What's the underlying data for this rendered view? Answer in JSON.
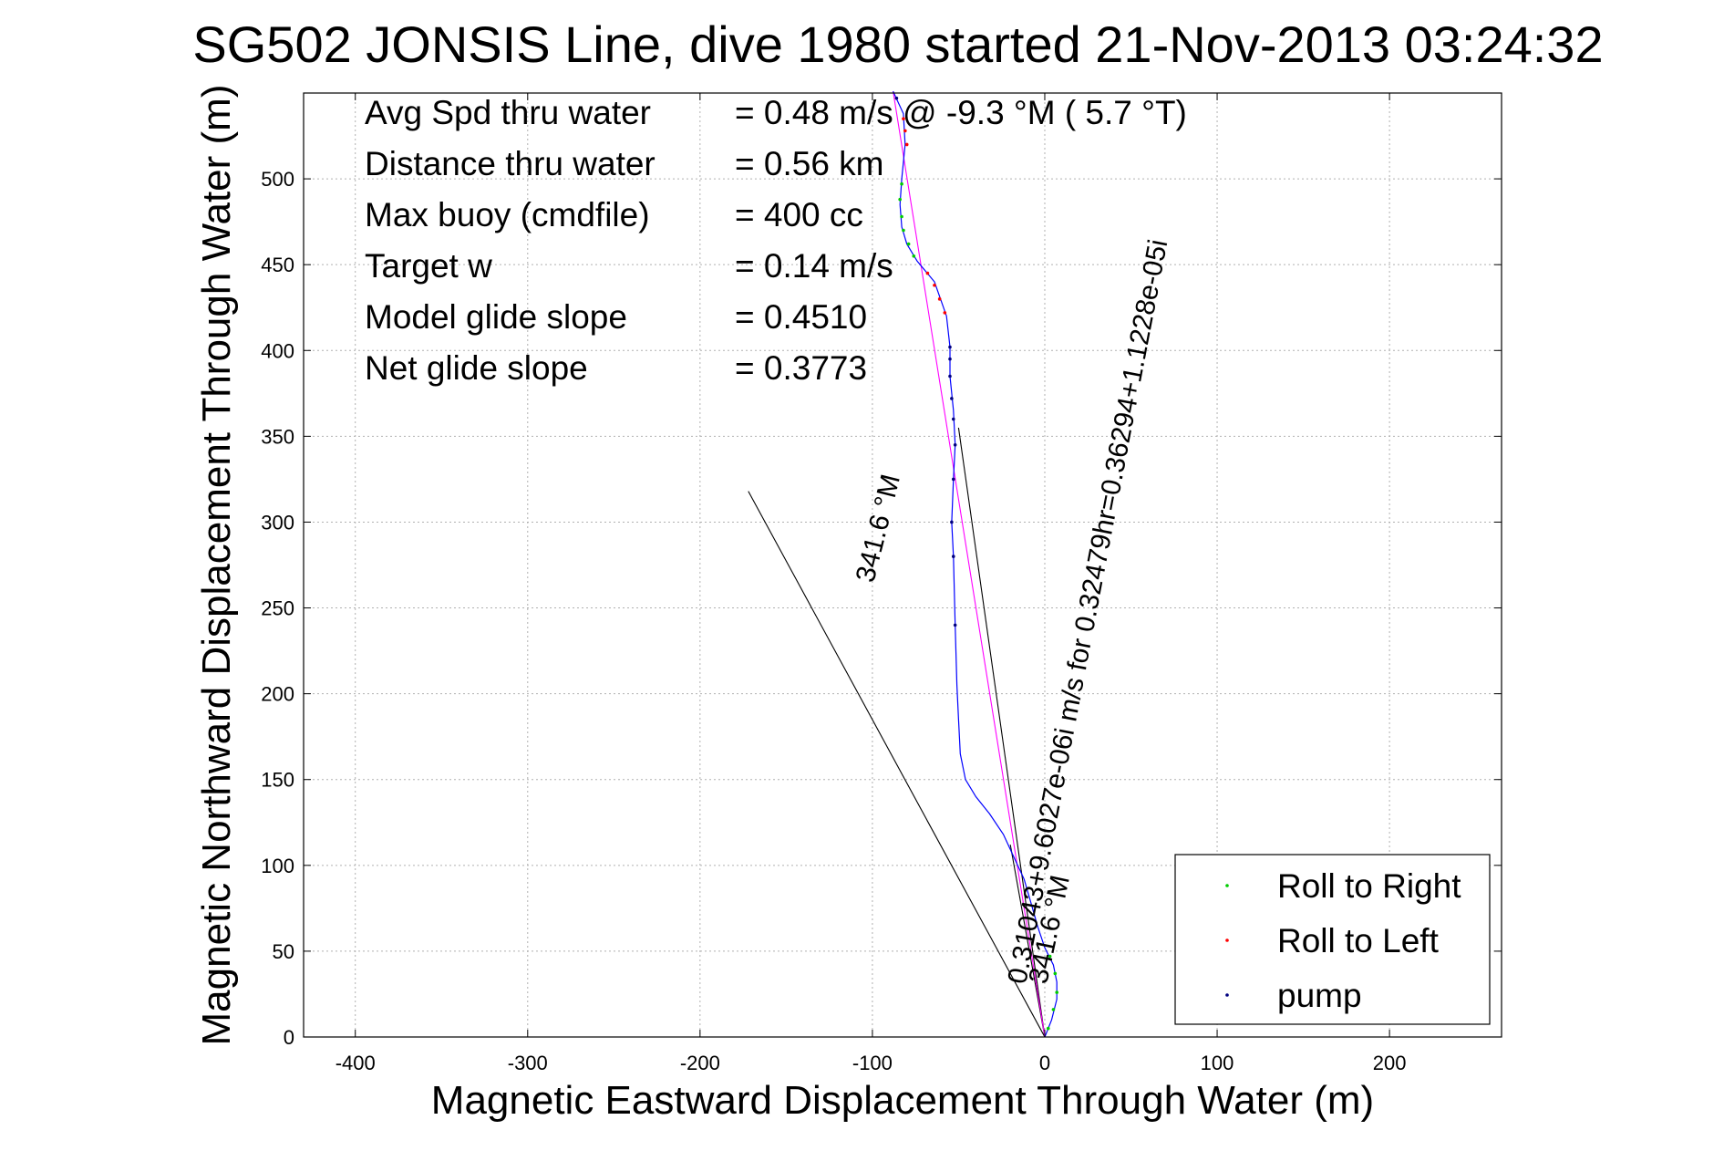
{
  "chart_data": {
    "type": "line",
    "title": "SG502 JONSIS Line, dive 1980 started 21-Nov-2013 03:24:32",
    "xlabel": "Magnetic Eastward Displacement Through Water (m)",
    "ylabel": "Magnetic Northward Displacement Through Water (m)",
    "xlim": [
      -430,
      265
    ],
    "ylim": [
      0,
      550
    ],
    "xticks": [
      -400,
      -300,
      -200,
      -100,
      0,
      100,
      200
    ],
    "yticks": [
      0,
      50,
      100,
      150,
      200,
      250,
      300,
      350,
      400,
      450,
      500
    ],
    "grid": true,
    "legend_position": "bottom-right",
    "stats": [
      {
        "label": "Avg Spd thru water",
        "value": "= 0.48 m/s @  -9.3 °M (  5.7 °T)"
      },
      {
        "label": "Distance thru water",
        "value": "= 0.56 km"
      },
      {
        "label": "Max buoy (cmdfile)",
        "value": "= 400 cc"
      },
      {
        "label": "Target w",
        "value": "= 0.14 m/s"
      },
      {
        "label": "Model glide slope",
        "value": "= 0.4510"
      },
      {
        "label": "Net glide slope",
        "value": "= 0.3773"
      }
    ],
    "annotations": {
      "track_label": "0.31043+9.6027e-06i m/s for 0.32479hr=0.36294+1.1228e-05i",
      "heading_a": "341.6 °M",
      "heading_b": "341.6 °M"
    },
    "series": [
      {
        "name": "Roll to Right",
        "color": "#00cc00",
        "marker": "dot"
      },
      {
        "name": "Roll to Left",
        "color": "#ff0000",
        "marker": "dot"
      },
      {
        "name": "pump",
        "color": "#00007f",
        "marker": "dot"
      }
    ],
    "track": {
      "color": "#0000ff",
      "points": [
        [
          0,
          0
        ],
        [
          4,
          10
        ],
        [
          7,
          22
        ],
        [
          7,
          32
        ],
        [
          5,
          42
        ],
        [
          0,
          52
        ],
        [
          -4,
          64
        ],
        [
          -8,
          78
        ],
        [
          -12,
          92
        ],
        [
          -18,
          105
        ],
        [
          -24,
          118
        ],
        [
          -32,
          130
        ],
        [
          -40,
          140
        ],
        [
          -46,
          150
        ],
        [
          -49,
          165
        ],
        [
          -50,
          185
        ],
        [
          -51,
          205
        ],
        [
          -52,
          240
        ],
        [
          -53,
          280
        ],
        [
          -54,
          300
        ],
        [
          -53,
          325
        ],
        [
          -52,
          345
        ],
        [
          -53,
          365
        ],
        [
          -55,
          385
        ],
        [
          -55,
          402
        ],
        [
          -57,
          420
        ],
        [
          -64,
          440
        ],
        [
          -74,
          452
        ],
        [
          -80,
          462
        ],
        [
          -83,
          472
        ],
        [
          -84,
          485
        ],
        [
          -83,
          500
        ],
        [
          -81,
          520
        ],
        [
          -82,
          538
        ],
        [
          -88,
          551
        ]
      ],
      "roll_right": [
        [
          2,
          5
        ],
        [
          5,
          16
        ],
        [
          7,
          26
        ],
        [
          6,
          37
        ],
        [
          3,
          47
        ],
        [
          -76,
          455
        ],
        [
          -79,
          462
        ],
        [
          -82,
          470
        ],
        [
          -83,
          478
        ],
        [
          -84,
          488
        ],
        [
          -83,
          497
        ]
      ],
      "roll_left": [
        [
          -58,
          422
        ],
        [
          -61,
          430
        ],
        [
          -64,
          438
        ],
        [
          -68,
          445
        ],
        [
          -80,
          520
        ],
        [
          -81,
          528
        ],
        [
          -82,
          535
        ]
      ],
      "pump": [
        [
          -52,
          240
        ],
        [
          -53,
          280
        ],
        [
          -54,
          300
        ],
        [
          -53,
          325
        ],
        [
          -52,
          345
        ],
        [
          -53,
          360
        ],
        [
          -54,
          372
        ],
        [
          -55,
          385
        ],
        [
          -55,
          395
        ],
        [
          -55,
          402
        ],
        [
          -86,
          547
        ]
      ]
    },
    "dac_line": {
      "color": "#ff00ff",
      "points": [
        [
          0,
          0
        ],
        [
          -88,
          551
        ]
      ]
    },
    "heading_lines": {
      "color": "#000000",
      "lines": [
        [
          [
            0,
            0
          ],
          [
            -172,
            318
          ]
        ],
        [
          [
            0,
            0
          ],
          [
            -20,
            112
          ]
        ],
        [
          [
            0,
            0
          ],
          [
            -50,
            355
          ]
        ]
      ]
    }
  }
}
